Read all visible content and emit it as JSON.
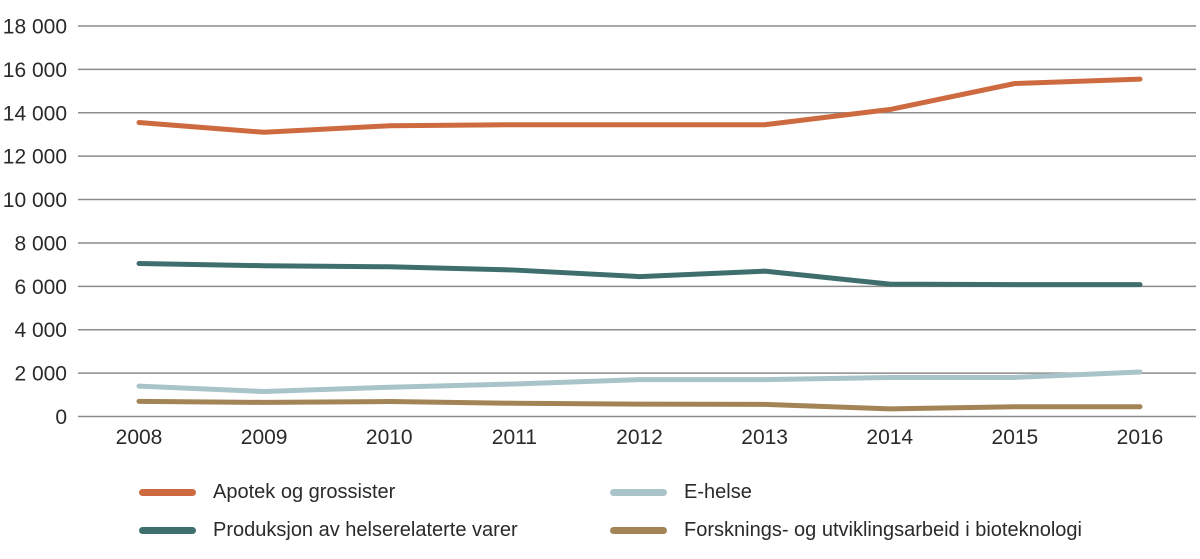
{
  "chart_data": {
    "type": "line",
    "categories": [
      "2008",
      "2009",
      "2010",
      "2011",
      "2012",
      "2013",
      "2014",
      "2015",
      "2016"
    ],
    "series": [
      {
        "name": "Apotek og grossister",
        "color": "#ce6a3f",
        "values": [
          13550,
          13100,
          13400,
          13450,
          13450,
          13450,
          14150,
          15350,
          15550
        ]
      },
      {
        "name": "Produksjon av helserelaterte varer",
        "color": "#3e6f6d",
        "values": [
          7050,
          6950,
          6900,
          6750,
          6450,
          6700,
          6100,
          6080,
          6080
        ]
      },
      {
        "name": "E-helse",
        "color": "#a9c4c8",
        "values": [
          1400,
          1150,
          1350,
          1500,
          1700,
          1700,
          1800,
          1800,
          2050
        ]
      },
      {
        "name": "Forsknings- og utviklingsarbeid i bioteknologi",
        "color": "#a28456",
        "values": [
          700,
          650,
          690,
          610,
          570,
          560,
          350,
          450,
          450
        ]
      }
    ],
    "title": "",
    "xlabel": "",
    "ylabel": "",
    "ylim": [
      0,
      18000
    ],
    "y_tick_step": 2000,
    "y_tick_labels": [
      "0",
      "2 000",
      "4 000",
      "6 000",
      "8 000",
      "10 000",
      "12 000",
      "14 000",
      "16 000",
      "18 000"
    ],
    "grid": true,
    "legend_position": "bottom",
    "legend_columns": 2,
    "legend_order_by_series_index": [
      0,
      2,
      1,
      3
    ]
  },
  "style": {
    "grid_color": "#8c8c8c",
    "axis_text_color": "#2b2a29",
    "background": "#ffffff"
  }
}
